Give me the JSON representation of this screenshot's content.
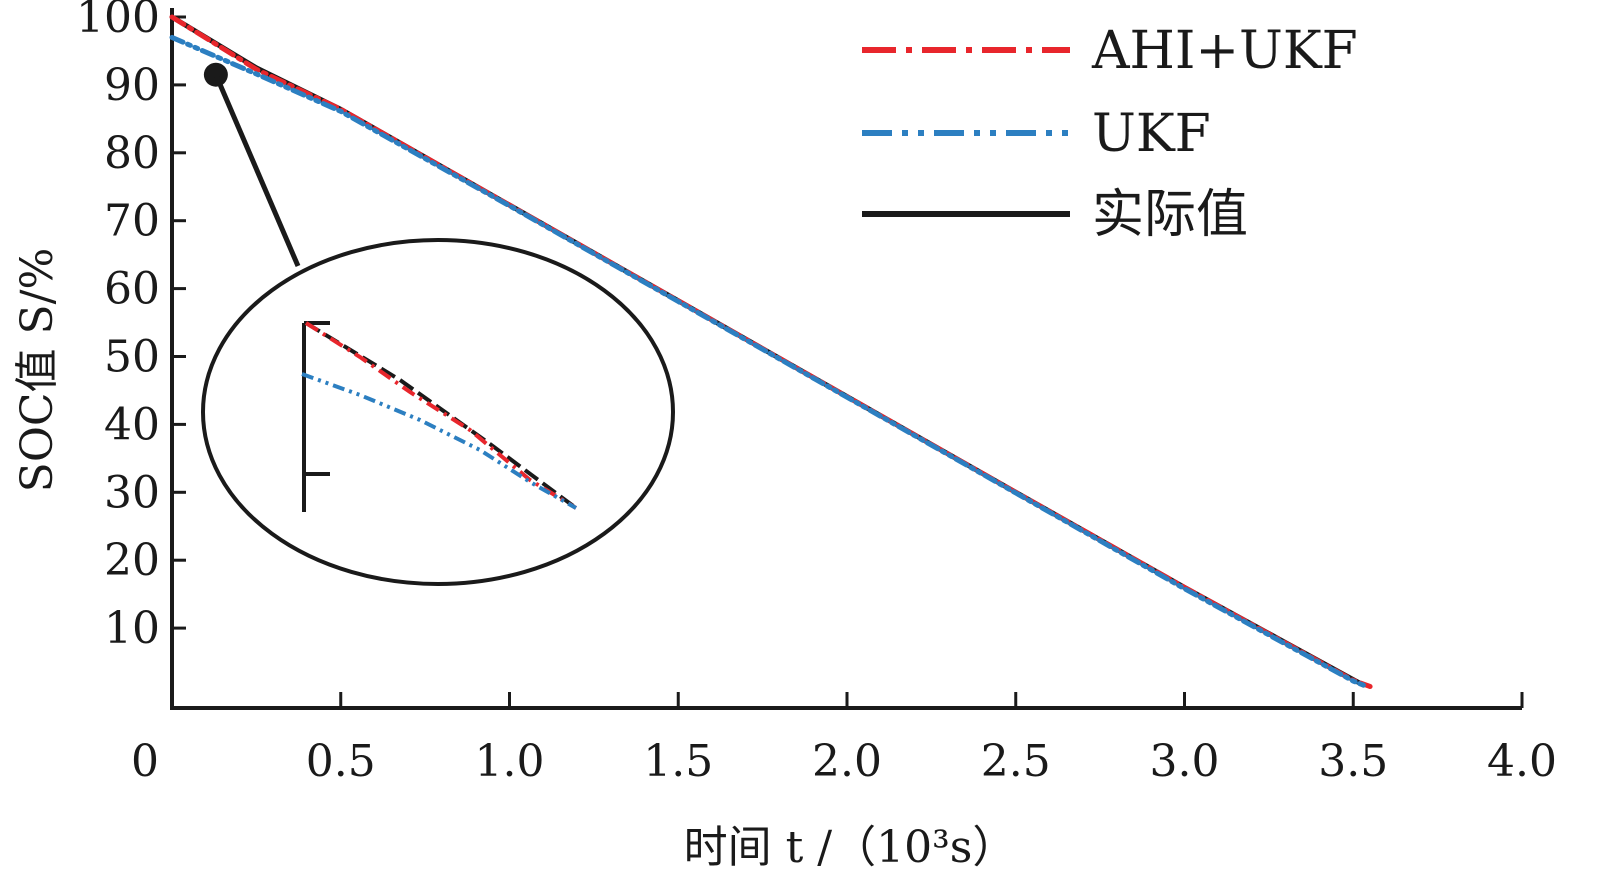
{
  "chart_data": {
    "type": "line",
    "xlabel": "时间 t /（10³s）",
    "ylabel": "SOC值 S/%",
    "xlim": [
      0,
      4.0
    ],
    "ylim": [
      0,
      100
    ],
    "x_ticks": [
      "0",
      "0.5",
      "1.0",
      "1.5",
      "2.0",
      "2.5",
      "3.0",
      "3.5",
      "4.0"
    ],
    "y_ticks": [
      "100",
      "90",
      "80",
      "70",
      "60",
      "50",
      "40",
      "30",
      "20",
      "10"
    ],
    "grid": false,
    "legend_position": "top-right",
    "series": [
      {
        "name": "AHI+UKF",
        "color": "#e8262c",
        "style": "dash-dot",
        "x": [
          0,
          0.25,
          0.5,
          1.0,
          1.5,
          2.0,
          2.5,
          3.0,
          3.5,
          3.55
        ],
        "y": [
          100.0,
          92.3,
          86.4,
          72.3,
          58.2,
          44.1,
          30.0,
          16.0,
          2.3,
          1.4
        ]
      },
      {
        "name": "UKF",
        "color": "#2c7fc1",
        "style": "dash-dot-dot",
        "x": [
          0,
          0.25,
          0.5,
          1.0,
          1.5,
          2.0,
          2.5,
          3.0,
          3.5,
          3.53
        ],
        "y": [
          97.0,
          91.6,
          86.1,
          72.2,
          58.1,
          44.0,
          29.9,
          15.8,
          2.2,
          1.6
        ]
      },
      {
        "name": "实际值",
        "color": "#1a1a1a",
        "style": "solid",
        "x": [
          0,
          0.25,
          0.5,
          1.0,
          1.5,
          2.0,
          2.5,
          3.0,
          3.5,
          3.53
        ],
        "y": [
          100.0,
          92.5,
          86.4,
          72.3,
          58.2,
          44.1,
          30.0,
          16.0,
          2.4,
          1.6
        ]
      }
    ],
    "inset": {
      "description_marker_x": 0.13,
      "description_marker_y": 91.5
    }
  }
}
